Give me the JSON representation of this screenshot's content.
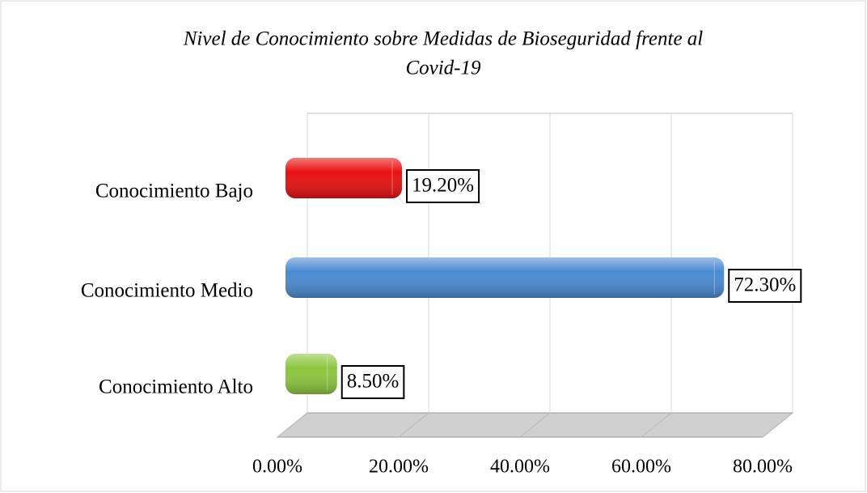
{
  "chart_data": {
    "type": "bar",
    "orientation": "horizontal",
    "title": "Nivel de Conocimiento sobre Medidas de Bioseguridad frente al Covid-19",
    "categories": [
      "Conocimiento Bajo",
      "Conocimiento Medio",
      "Conocimiento Alto"
    ],
    "values": [
      19.2,
      72.3,
      8.5
    ],
    "value_labels": [
      "19.20%",
      "72.30%",
      "8.50%"
    ],
    "colors": [
      "#e81010",
      "#4a8ad2",
      "#8cc63f"
    ],
    "xlim": [
      0,
      80
    ],
    "xticks": [
      {
        "value": 0,
        "label": "0.00%"
      },
      {
        "value": 20,
        "label": "20.00%"
      },
      {
        "value": 40,
        "label": "40.00%"
      },
      {
        "value": 60,
        "label": "60.00%"
      },
      {
        "value": 80,
        "label": "80.00%"
      }
    ],
    "grid": true
  }
}
